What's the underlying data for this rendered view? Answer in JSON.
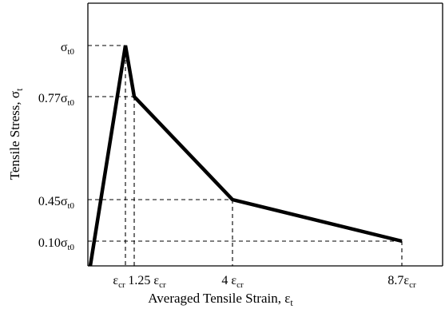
{
  "chart_data": {
    "type": "line",
    "xlabel": "Averaged Tensile Strain, ",
    "xlabel_symbol": "ε",
    "xlabel_sub": "t",
    "ylabel": "Tensile Stress, ",
    "ylabel_symbol": "σ",
    "ylabel_sub": "t",
    "x_unit": "ε_cr",
    "y_unit": "σ_t0",
    "series": [
      {
        "x": [
          0,
          1,
          1.25,
          4,
          8.7
        ],
        "y": [
          0,
          1,
          0.77,
          0.45,
          0.1
        ]
      }
    ],
    "x_ticks": [
      {
        "value": 1,
        "coef": "",
        "sym": "ε",
        "sub": "cr"
      },
      {
        "value": 1.25,
        "coef": "1.25 ",
        "sym": "ε",
        "sub": "cr"
      },
      {
        "value": 4,
        "coef": "4 ",
        "sym": "ε",
        "sub": "cr"
      },
      {
        "value": 8.7,
        "coef": "8.7",
        "sym": "ε",
        "sub": "cr"
      }
    ],
    "y_ticks": [
      {
        "value": 1,
        "coef": "",
        "sym": "σ",
        "sub": "t0"
      },
      {
        "value": 0.77,
        "coef": "0.77",
        "sym": "σ",
        "sub": "t0"
      },
      {
        "value": 0.45,
        "coef": "0.45",
        "sym": "σ",
        "sub": "t0"
      },
      {
        "value": 0.1,
        "coef": "0.10",
        "sym": "σ",
        "sub": "t0"
      }
    ],
    "reference_lines": "dashed",
    "colors": {
      "line": "#000000",
      "axis": "#000000"
    }
  }
}
